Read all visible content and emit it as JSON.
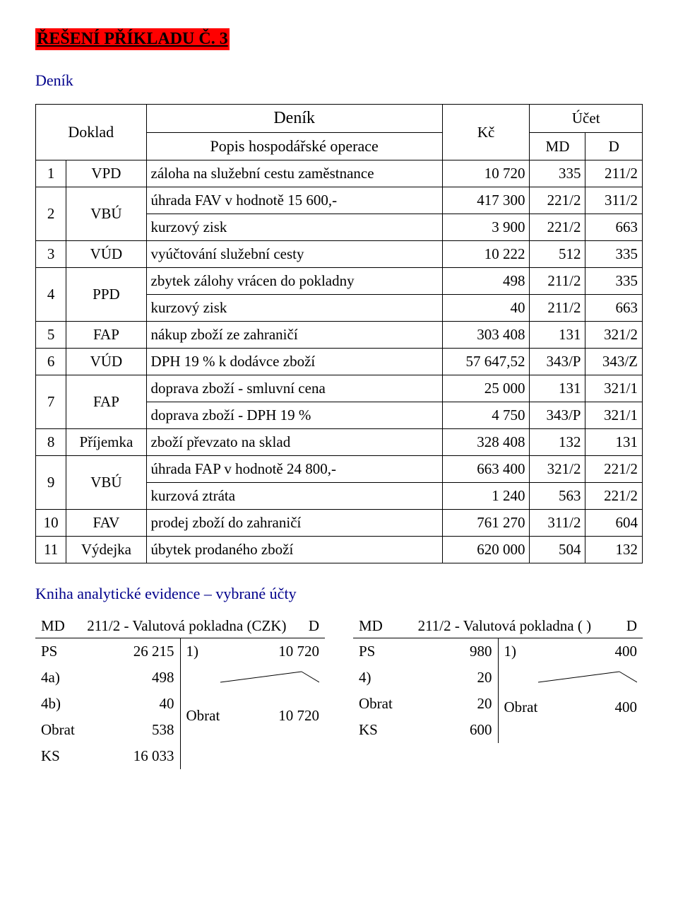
{
  "title": "ŘEŠENÍ PŘÍKLADU Č. 3",
  "denik_heading": "Deník",
  "subsection_heading": "Kniha analytické evidence – vybrané účty",
  "journal": {
    "head": {
      "denik": "Deník",
      "doklad": "Doklad",
      "popis": "Popis hospodářské operace",
      "kc": "Kč",
      "ucet": "Účet",
      "md": "MD",
      "d": "D"
    },
    "rows": [
      {
        "n": "1",
        "doklad": "VPD",
        "popis": "záloha na služební cestu zaměstnance",
        "kc": "10 720",
        "md": "335",
        "d": "211/2",
        "rowspan": 1
      },
      {
        "n": "2",
        "doklad": "VBÚ",
        "rowspan": 2,
        "sub": [
          {
            "popis": "úhrada FAV v hodnotě 15 600,-",
            "kc": "417 300",
            "md": "221/2",
            "d": "311/2"
          },
          {
            "popis": "kurzový zisk",
            "kc": "3 900",
            "md": "221/2",
            "d": "663"
          }
        ]
      },
      {
        "n": "3",
        "doklad": "VÚD",
        "popis": "vyúčtování služební cesty",
        "kc": "10 222",
        "md": "512",
        "d": "335",
        "rowspan": 1
      },
      {
        "n": "4",
        "doklad": "PPD",
        "rowspan": 2,
        "sub": [
          {
            "popis": "zbytek zálohy vrácen do pokladny",
            "kc": "498",
            "md": "211/2",
            "d": "335"
          },
          {
            "popis": "kurzový zisk",
            "kc": "40",
            "md": "211/2",
            "d": "663"
          }
        ]
      },
      {
        "n": "5",
        "doklad": "FAP",
        "popis": "nákup zboží ze zahraničí",
        "kc": "303 408",
        "md": "131",
        "d": "321/2",
        "rowspan": 1
      },
      {
        "n": "6",
        "doklad": "VÚD",
        "popis": "DPH 19 % k dodávce zboží",
        "kc": "57 647,52",
        "md": "343/P",
        "d": "343/Z",
        "rowspan": 1
      },
      {
        "n": "7",
        "doklad": "FAP",
        "rowspan": 2,
        "sub": [
          {
            "popis": "doprava zboží - smluvní cena",
            "kc": "25 000",
            "md": "131",
            "d": "321/1"
          },
          {
            "popis": "doprava zboží - DPH 19 %",
            "kc": "4 750",
            "md": "343/P",
            "d": "321/1"
          }
        ]
      },
      {
        "n": "8",
        "doklad": "Příjemka",
        "popis": "zboží převzato na sklad",
        "kc": "328 408",
        "md": "132",
        "d": "131",
        "rowspan": 1
      },
      {
        "n": "9",
        "doklad": "VBÚ",
        "rowspan": 2,
        "sub": [
          {
            "popis": "úhrada FAP v hodnotě 24 800,-",
            "kc": "663 400",
            "md": "321/2",
            "d": "221/2"
          },
          {
            "popis": "kurzová ztráta",
            "kc": "1 240",
            "md": "563",
            "d": "221/2"
          }
        ]
      },
      {
        "n": "10",
        "doklad": "FAV",
        "popis": "prodej zboží do zahraničí",
        "kc": "761 270",
        "md": "311/2",
        "d": "604",
        "rowspan": 1
      },
      {
        "n": "11",
        "doklad": "Výdejka",
        "popis": "úbytek prodaného zboží",
        "kc": "620 000",
        "md": "504",
        "d": "132",
        "rowspan": 1
      }
    ]
  },
  "ledgers": [
    {
      "title_md": "MD",
      "name": "211/2 - Valutová pokladna (CZK)",
      "title_d": "D",
      "debit": [
        {
          "lbl": "PS",
          "val": "26 215"
        },
        {
          "lbl": "4a)",
          "val": "498"
        },
        {
          "lbl": "4b)",
          "val": "40"
        },
        {
          "lbl": "Obrat",
          "val": "538"
        },
        {
          "lbl": "KS",
          "val": "16 033"
        }
      ],
      "credit": [
        {
          "lbl": "1)",
          "val": "10 720"
        },
        {
          "lbl": "",
          "val": "",
          "tick": true
        },
        {
          "lbl": "",
          "val": ""
        },
        {
          "lbl": "Obrat",
          "val": "10 720"
        }
      ]
    },
    {
      "title_md": "MD",
      "name": "211/2 - Valutová pokladna ( )",
      "title_d": "D",
      "debit": [
        {
          "lbl": "PS",
          "val": "980"
        },
        {
          "lbl": "4)",
          "val": "20"
        },
        {
          "lbl": "Obrat",
          "val": "20"
        },
        {
          "lbl": "KS",
          "val": "600"
        }
      ],
      "credit": [
        {
          "lbl": "1)",
          "val": "400"
        },
        {
          "lbl": "",
          "val": "",
          "tick": true
        },
        {
          "lbl": "Obrat",
          "val": "400"
        }
      ]
    }
  ]
}
